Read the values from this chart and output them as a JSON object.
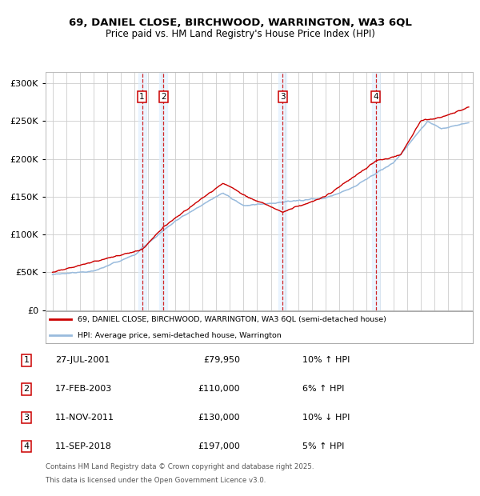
{
  "title_line1": "69, DANIEL CLOSE, BIRCHWOOD, WARRINGTON, WA3 6QL",
  "title_line2": "Price paid vs. HM Land Registry's House Price Index (HPI)",
  "ytick_values": [
    0,
    50000,
    100000,
    150000,
    200000,
    250000,
    300000
  ],
  "ylim": [
    0,
    315000
  ],
  "xlim_start": 1994.5,
  "xlim_end": 2025.8,
  "line_red_color": "#cc0000",
  "line_blue_color": "#99bbdd",
  "legend_label_red": "69, DANIEL CLOSE, BIRCHWOOD, WARRINGTON, WA3 6QL (semi-detached house)",
  "legend_label_blue": "HPI: Average price, semi-detached house, Warrington",
  "transactions": [
    {
      "num": 1,
      "date": "27-JUL-2001",
      "price": 79950,
      "pct": "10%",
      "dir": "↑",
      "year": 2001.57
    },
    {
      "num": 2,
      "date": "17-FEB-2003",
      "price": 110000,
      "pct": "6%",
      "dir": "↑",
      "year": 2003.13
    },
    {
      "num": 3,
      "date": "11-NOV-2011",
      "price": 130000,
      "pct": "10%",
      "dir": "↓",
      "year": 2011.87
    },
    {
      "num": 4,
      "date": "11-SEP-2018",
      "price": 197000,
      "pct": "5%",
      "dir": "↑",
      "year": 2018.7
    }
  ],
  "footnote_line1": "Contains HM Land Registry data © Crown copyright and database right 2025.",
  "footnote_line2": "This data is licensed under the Open Government Licence v3.0.",
  "bg_color": "#ffffff",
  "grid_color": "#cccccc",
  "dashed_color": "#cc0000",
  "shade_color": "#ddeeff",
  "hpi_anchors": [
    [
      1995.0,
      47000
    ],
    [
      1998.0,
      51000
    ],
    [
      2001.0,
      73000
    ],
    [
      2004.0,
      118000
    ],
    [
      2007.5,
      155000
    ],
    [
      2009.0,
      138000
    ],
    [
      2012.0,
      143000
    ],
    [
      2015.0,
      148000
    ],
    [
      2017.0,
      162000
    ],
    [
      2020.0,
      195000
    ],
    [
      2022.5,
      250000
    ],
    [
      2023.5,
      240000
    ],
    [
      2025.5,
      248000
    ]
  ],
  "pp_anchors": [
    [
      1995.0,
      50000
    ],
    [
      2001.57,
      79950
    ],
    [
      2003.13,
      110000
    ],
    [
      2007.5,
      168000
    ],
    [
      2009.5,
      148000
    ],
    [
      2011.87,
      130000
    ],
    [
      2015.0,
      150000
    ],
    [
      2018.7,
      197000
    ],
    [
      2020.5,
      205000
    ],
    [
      2022.0,
      250000
    ],
    [
      2023.5,
      255000
    ],
    [
      2025.5,
      268000
    ]
  ]
}
